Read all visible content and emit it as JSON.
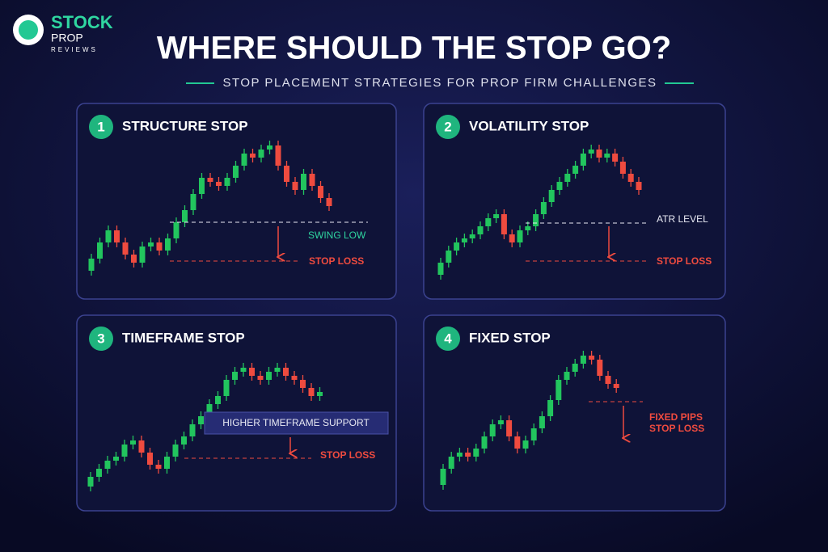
{
  "logo": {
    "name": "STOCK",
    "line2": "PROP",
    "line3": "REVIEWS"
  },
  "header": {
    "title": "WHERE SHOULD THE STOP GO?",
    "subtitle": "STOP PLACEMENT STRATEGIES FOR PROP FIRM CHALLENGES"
  },
  "panels": [
    {
      "number": "1",
      "title": "STRUCTURE STOP",
      "labels": [
        "SWING LOW",
        "STOP LOSS"
      ]
    },
    {
      "number": "2",
      "title": "VOLATILITY STOP",
      "labels": [
        "ATR LEVEL",
        "STOP LOSS"
      ]
    },
    {
      "number": "3",
      "title": "TIMEFRAME STOP",
      "labels": [
        "HIGHER TIMEFRAME SUPPORT",
        "STOP LOSS"
      ]
    },
    {
      "number": "4",
      "title": "FIXED STOP",
      "labels": [
        "FIXED PIPS",
        "STOP LOSS"
      ]
    }
  ]
}
